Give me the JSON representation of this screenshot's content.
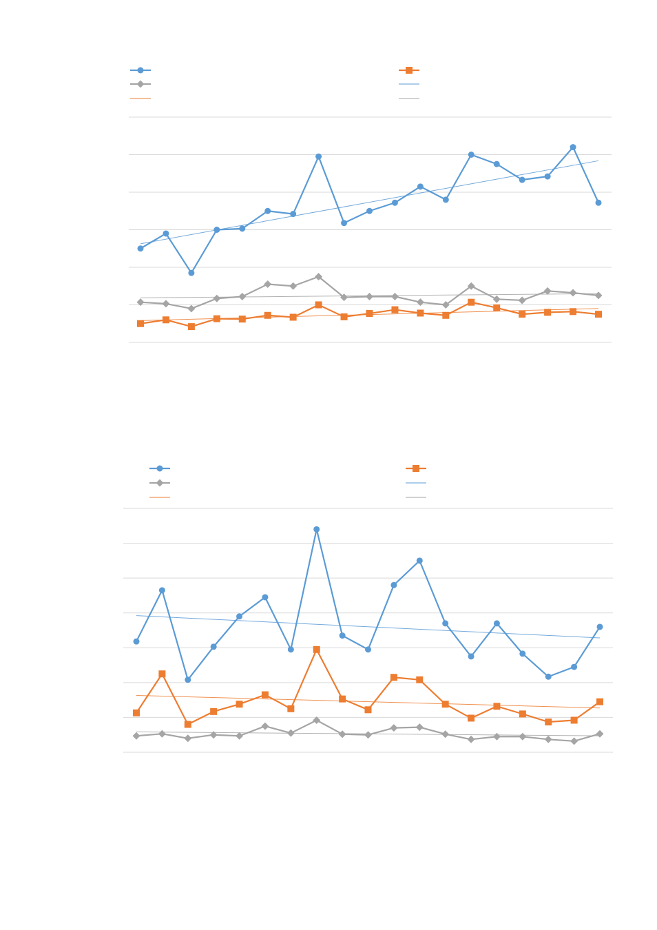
{
  "colors": {
    "series_a": "#5b9bd5",
    "series_b": "#ed7d31",
    "series_c": "#a5a5a5",
    "gridline": "#d9d9d9"
  },
  "chart_data": [
    {
      "type": "line",
      "title": "",
      "xlabel": "",
      "ylabel": "",
      "grid": true,
      "legend_placement": "top",
      "ylim": [
        0,
        6
      ],
      "x": [
        1,
        2,
        3,
        4,
        5,
        6,
        7,
        8,
        9,
        10,
        11,
        12,
        13,
        14,
        15,
        16,
        17,
        18,
        19
      ],
      "series": [
        {
          "color_key": "series_a",
          "marker": "circle",
          "trendline": true,
          "values": [
            2.5,
            2.9,
            1.85,
            3.0,
            3.03,
            3.5,
            3.42,
            4.95,
            3.18,
            3.5,
            3.72,
            4.15,
            3.8,
            5.0,
            4.75,
            4.33,
            4.42,
            5.2,
            3.72
          ]
        },
        {
          "color_key": "series_b",
          "marker": "square",
          "trendline": true,
          "values": [
            0.5,
            0.6,
            0.42,
            0.63,
            0.62,
            0.72,
            0.67,
            1.0,
            0.68,
            0.77,
            0.87,
            0.78,
            0.72,
            1.07,
            0.92,
            0.75,
            0.8,
            0.82,
            0.75
          ]
        },
        {
          "color_key": "series_c",
          "marker": "diamond",
          "trendline": true,
          "values": [
            1.07,
            1.03,
            0.9,
            1.17,
            1.22,
            1.55,
            1.5,
            1.75,
            1.2,
            1.22,
            1.22,
            1.07,
            1.0,
            1.5,
            1.15,
            1.12,
            1.37,
            1.32,
            1.25
          ]
        }
      ]
    },
    {
      "type": "line",
      "title": "",
      "xlabel": "",
      "ylabel": "",
      "grid": true,
      "legend_placement": "top",
      "ylim": [
        0,
        7
      ],
      "x": [
        1,
        2,
        3,
        4,
        5,
        6,
        7,
        8,
        9,
        10,
        11,
        12,
        13,
        14,
        15,
        16,
        17,
        18,
        19
      ],
      "series": [
        {
          "color_key": "series_a",
          "marker": "circle",
          "trendline": true,
          "values": [
            3.18,
            4.65,
            2.08,
            3.03,
            3.9,
            4.45,
            2.95,
            6.4,
            3.35,
            2.95,
            4.8,
            5.5,
            3.7,
            2.75,
            3.7,
            2.83,
            2.17,
            2.45,
            3.6
          ]
        },
        {
          "color_key": "series_b",
          "marker": "square",
          "trendline": true,
          "values": [
            1.13,
            2.25,
            0.8,
            1.17,
            1.38,
            1.65,
            1.25,
            2.95,
            1.53,
            1.22,
            2.15,
            2.08,
            1.38,
            0.98,
            1.32,
            1.1,
            0.87,
            0.92,
            1.45
          ]
        },
        {
          "color_key": "series_c",
          "marker": "diamond",
          "trendline": true,
          "values": [
            0.47,
            0.53,
            0.4,
            0.5,
            0.47,
            0.75,
            0.55,
            0.92,
            0.52,
            0.5,
            0.7,
            0.72,
            0.52,
            0.37,
            0.45,
            0.45,
            0.37,
            0.32,
            0.53
          ]
        }
      ]
    }
  ]
}
